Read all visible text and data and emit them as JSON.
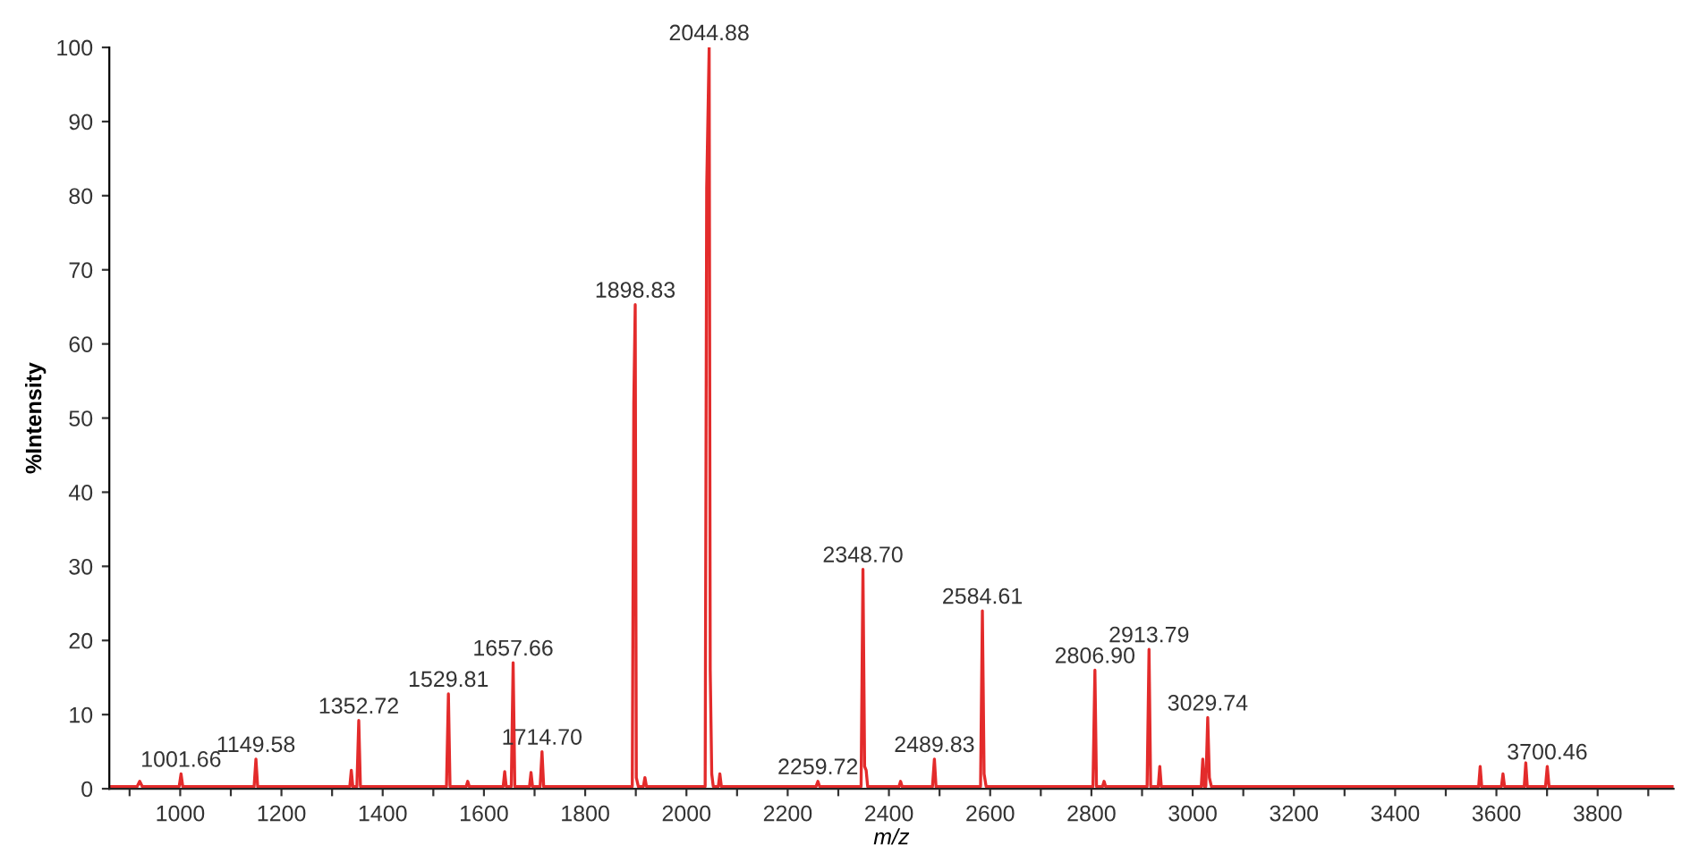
{
  "chart_data": {
    "type": "line",
    "xlabel": "m/z",
    "ylabel": "%Intensity",
    "color": "#e32b2b",
    "x": [
      860,
      915,
      920,
      925,
      998,
      1001.66,
      1005,
      1146,
      1149.58,
      1153,
      1335,
      1338,
      1341,
      1349,
      1352.72,
      1356,
      1526,
      1529.81,
      1533,
      1565,
      1568,
      1571,
      1638,
      1641,
      1644,
      1654,
      1657.66,
      1661,
      1690,
      1693,
      1696,
      1711,
      1714.7,
      1718,
      1893,
      1896,
      1898.83,
      1901,
      1905,
      1915,
      1918,
      1921,
      2037,
      2040,
      2044.88,
      2047,
      2050,
      2053,
      2063,
      2066,
      2069,
      2256,
      2259.72,
      2263,
      2345,
      2348.7,
      2352,
      2355,
      2358,
      2420,
      2423,
      2426,
      2486,
      2489.83,
      2493,
      2581,
      2584.61,
      2588,
      2592,
      2803,
      2806.9,
      2810,
      2822,
      2825,
      2828,
      2910,
      2913.79,
      2917,
      2932,
      2935,
      2938,
      3017,
      3020,
      3023,
      3026,
      3029.74,
      3033,
      3037,
      3565,
      3568,
      3571,
      3610,
      3613,
      3616,
      3655,
      3658,
      3661,
      3697,
      3700.46,
      3704,
      3950
    ],
    "values": [
      0.3,
      0.3,
      1,
      0.3,
      0.3,
      2,
      0.3,
      0.3,
      4,
      0.3,
      0.3,
      2.5,
      0.3,
      0.3,
      9.2,
      0.3,
      0.3,
      12.8,
      0.3,
      0.3,
      1,
      0.3,
      0.3,
      2.3,
      0.3,
      0.3,
      17,
      0.3,
      0.3,
      2.2,
      0.3,
      0.3,
      5,
      0.3,
      0.3,
      52,
      65.3,
      1.5,
      0.3,
      0.3,
      1.5,
      0.3,
      0.3,
      81,
      100,
      16,
      2,
      0.3,
      0.3,
      2,
      0.3,
      0.3,
      1,
      0.3,
      0.3,
      29.6,
      3,
      2.5,
      0.3,
      0.3,
      1,
      0.3,
      0.3,
      4,
      0.3,
      0.3,
      24,
      2,
      0.3,
      0.3,
      16,
      0.3,
      0.3,
      1,
      0.3,
      0.3,
      18.8,
      0.3,
      0.3,
      3,
      0.3,
      0.3,
      4,
      0.3,
      0.3,
      9.6,
      1.5,
      0.3,
      0.3,
      3,
      0.3,
      0.3,
      2,
      0.3,
      0.3,
      3.5,
      0.3,
      0.3,
      3,
      0.3,
      0.3
    ],
    "annotations": [
      {
        "text": "1001.66",
        "x": 1001.66,
        "y": 2
      },
      {
        "text": "1149.58",
        "x": 1149.58,
        "y": 4
      },
      {
        "text": "1352.72",
        "x": 1352.72,
        "y": 9.2
      },
      {
        "text": "1529.81",
        "x": 1529.81,
        "y": 12.8
      },
      {
        "text": "1657.66",
        "x": 1657.66,
        "y": 17
      },
      {
        "text": "1714.70",
        "x": 1714.7,
        "y": 5
      },
      {
        "text": "1898.83",
        "x": 1898.83,
        "y": 65.3
      },
      {
        "text": "2044.88",
        "x": 2044.88,
        "y": 100
      },
      {
        "text": "2259.72",
        "x": 2259.72,
        "y": 1
      },
      {
        "text": "2348.70",
        "x": 2348.7,
        "y": 29.6
      },
      {
        "text": "2489.83",
        "x": 2489.83,
        "y": 4
      },
      {
        "text": "2584.61",
        "x": 2584.61,
        "y": 24
      },
      {
        "text": "2806.90",
        "x": 2806.9,
        "y": 16
      },
      {
        "text": "2913.79",
        "x": 2913.79,
        "y": 18.8
      },
      {
        "text": "3029.74",
        "x": 3029.74,
        "y": 9.6
      },
      {
        "text": "3700.46",
        "x": 3700.46,
        "y": 3
      }
    ],
    "xlim": [
      860,
      3950
    ],
    "ylim": [
      0,
      100
    ],
    "xticks": [
      {
        "value": 900,
        "label": null
      },
      1000,
      {
        "value": 1100,
        "label": null
      },
      1200,
      {
        "value": 1300,
        "label": null
      },
      1400,
      {
        "value": 1500,
        "label": null
      },
      1600,
      {
        "value": 1700,
        "label": null
      },
      1800,
      {
        "value": 1900,
        "label": null
      },
      2000,
      {
        "value": 2100,
        "label": null
      },
      2200,
      {
        "value": 2300,
        "label": null
      },
      2400,
      {
        "value": 2500,
        "label": null
      },
      2600,
      {
        "value": 2700,
        "label": null
      },
      2800,
      {
        "value": 2900,
        "label": null
      },
      3000,
      {
        "value": 3100,
        "label": null
      },
      3200,
      {
        "value": 3300,
        "label": null
      },
      3400,
      {
        "value": 3500,
        "label": null
      },
      3600,
      {
        "value": 3700,
        "label": null
      },
      3800,
      {
        "value": 3900,
        "label": null
      }
    ],
    "yticks": [
      0,
      10,
      20,
      30,
      40,
      50,
      60,
      70,
      80,
      90,
      100
    ]
  }
}
